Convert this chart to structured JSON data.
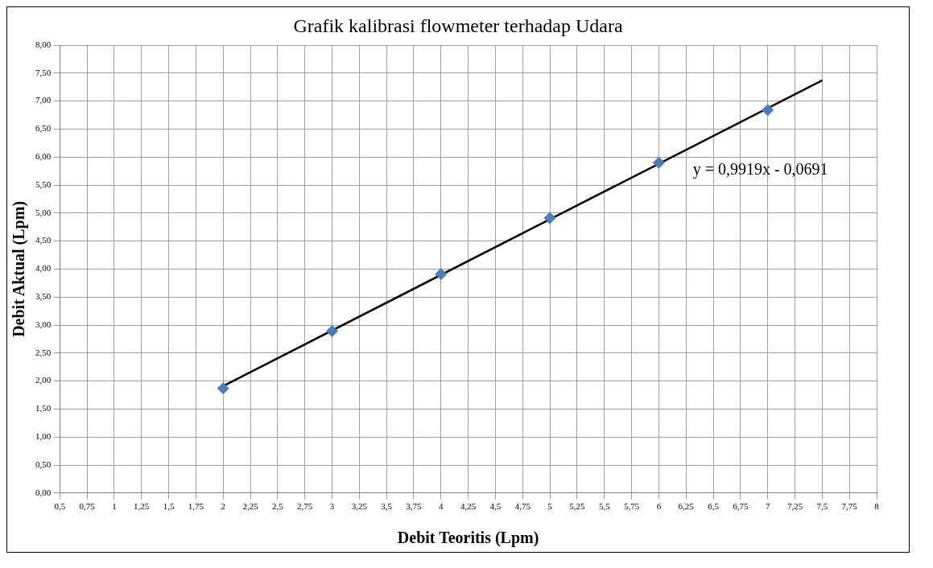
{
  "chart_data": {
    "type": "scatter",
    "title": "Grafik kalibrasi flowmeter terhadap Udara",
    "xlabel": "Debit Teoritis (Lpm)",
    "ylabel": "Debit Aktual (Lpm)",
    "series": [
      {
        "type": "scatter",
        "color": "#4a7ebb",
        "marker": "diamond",
        "x": [
          2,
          3,
          4,
          5,
          6,
          7
        ],
        "values": [
          1.87,
          2.89,
          3.91,
          4.91,
          5.9,
          6.84
        ]
      },
      {
        "type": "line",
        "color": "#000000",
        "marker": "none",
        "line_style": "solid",
        "x": [
          2,
          7.5
        ],
        "values": [
          1.91,
          7.37
        ]
      }
    ],
    "annotations": [
      "y = 0,9919x - 0,0691"
    ],
    "xlim": [
      0.5,
      8
    ],
    "ylim": [
      0,
      8
    ],
    "xticks": [
      {
        "value": 0.5,
        "label": "0,5"
      },
      {
        "value": 0.75,
        "label": "0,75"
      },
      1,
      {
        "value": 1.25,
        "label": "1,25"
      },
      {
        "value": 1.5,
        "label": "1,5"
      },
      {
        "value": 1.75,
        "label": "1,75"
      },
      2,
      {
        "value": 2.25,
        "label": "2,25"
      },
      {
        "value": 2.5,
        "label": "2,5"
      },
      {
        "value": 2.75,
        "label": "2,75"
      },
      3,
      {
        "value": 3.25,
        "label": "3,25"
      },
      {
        "value": 3.5,
        "label": "3,5"
      },
      {
        "value": 3.75,
        "label": "3,75"
      },
      4,
      {
        "value": 4.25,
        "label": "4,25"
      },
      {
        "value": 4.5,
        "label": "4,5"
      },
      {
        "value": 4.75,
        "label": "4,75"
      },
      5,
      {
        "value": 5.25,
        "label": "5,25"
      },
      {
        "value": 5.5,
        "label": "5,5"
      },
      {
        "value": 5.75,
        "label": "5,75"
      },
      6,
      {
        "value": 6.25,
        "label": "6,25"
      },
      {
        "value": 6.5,
        "label": "6,5"
      },
      {
        "value": 6.75,
        "label": "6,75"
      },
      7,
      {
        "value": 7.25,
        "label": "7,25"
      },
      {
        "value": 7.5,
        "label": "7,5"
      },
      {
        "value": 7.75,
        "label": "7,75"
      },
      8
    ],
    "yticks": [
      {
        "value": 0,
        "label": "0,00"
      },
      {
        "value": 0.5,
        "label": "0,50"
      },
      {
        "value": 1,
        "label": "1,00"
      },
      {
        "value": 1.5,
        "label": "1,50"
      },
      {
        "value": 2,
        "label": "2,00"
      },
      {
        "value": 2.5,
        "label": "2,50"
      },
      {
        "value": 3,
        "label": "3,00"
      },
      {
        "value": 3.5,
        "label": "3,50"
      },
      {
        "value": 4,
        "label": "4,00"
      },
      {
        "value": 4.5,
        "label": "4,50"
      },
      {
        "value": 5,
        "label": "5,00"
      },
      {
        "value": 5.5,
        "label": "5,50"
      },
      {
        "value": 6,
        "label": "6,00"
      },
      {
        "value": 6.5,
        "label": "6,50"
      },
      {
        "value": 7,
        "label": "7,00"
      },
      {
        "value": 7.5,
        "label": "7,50"
      },
      {
        "value": 8,
        "label": "8,00"
      }
    ],
    "grid": true,
    "legend": false
  }
}
